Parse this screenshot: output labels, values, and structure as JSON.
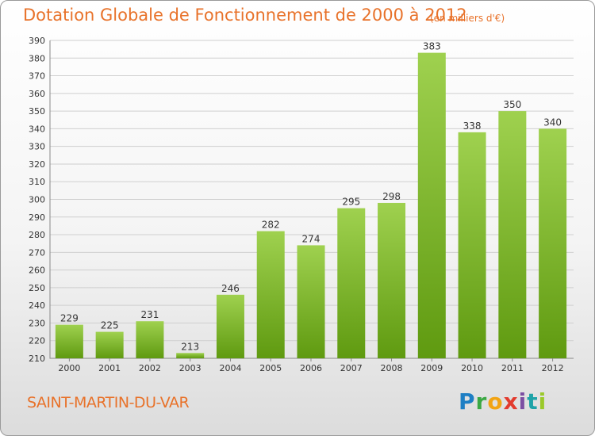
{
  "header": {
    "title": "Dotation Globale de Fonctionnement de 2000 à 2012",
    "unit": "(en milliers d'€)"
  },
  "footer": {
    "commune": "SAINT-MARTIN-DU-VAR",
    "logo_text": "Proxiti"
  },
  "colors": {
    "accent": "#e8722a",
    "bar_top": "#9fd14f",
    "bar_bottom": "#5f9a10"
  },
  "chart_data": {
    "type": "bar",
    "categories": [
      "2000",
      "2001",
      "2002",
      "2003",
      "2004",
      "2005",
      "2006",
      "2007",
      "2008",
      "2009",
      "2010",
      "2011",
      "2012"
    ],
    "values": [
      229,
      225,
      231,
      213,
      246,
      282,
      274,
      295,
      298,
      383,
      338,
      350,
      340
    ],
    "title": "Dotation Globale de Fonctionnement de 2000 à 2012",
    "subtitle": "(en milliers d'€)",
    "xlabel": "",
    "ylabel": "",
    "ylim": [
      210,
      390
    ],
    "yticks": [
      210,
      220,
      230,
      240,
      250,
      260,
      270,
      280,
      290,
      300,
      310,
      320,
      330,
      340,
      350,
      360,
      370,
      380,
      390
    ],
    "grid": true,
    "legend": "none"
  }
}
